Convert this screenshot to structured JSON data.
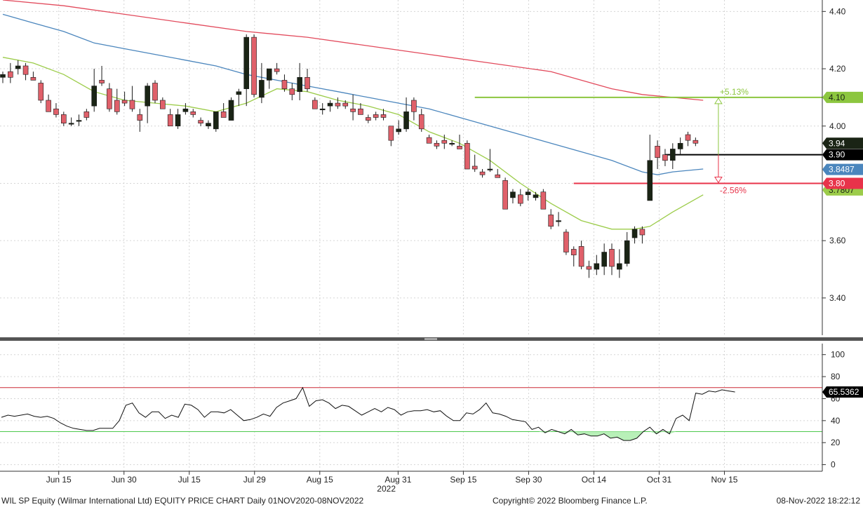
{
  "footer": {
    "left": "WIL SP Equity (Wilmar International Ltd) EQUITY PRICE CHART  Daily 01NOV2020-08NOV2022",
    "center": "Copyright© 2022 Bloomberg Finance L.P.",
    "right": "08-Nov-2022 18:22:12"
  },
  "colors": {
    "up_candle": "#1a2415",
    "down_candle": "#e0606a",
    "ma_green": "#9ccc4a",
    "ma_blue": "#4b86bd",
    "ma_red": "#e24a5c",
    "resistance": "#8cc63f",
    "support": "#e8334a",
    "last_price": "#000000",
    "rsi_line": "#111111",
    "rsi_fill": "#b8f0b8"
  },
  "chart_data": [
    {
      "type": "candlestick",
      "ylim": [
        3.27,
        4.44
      ],
      "yticks": [
        "3.40",
        "3.60",
        "3.80",
        "4.00",
        "4.20",
        "4.40"
      ],
      "xlim": [
        0,
        63
      ],
      "xticks": [
        {
          "x": 4.5,
          "label": "Jun 15"
        },
        {
          "x": 9.5,
          "label": "Jun 30"
        },
        {
          "x": 14.5,
          "label": "Jul 15"
        },
        {
          "x": 19.5,
          "label": "Jul 29"
        },
        {
          "x": 24.5,
          "label": "Aug 15"
        },
        {
          "x": 30.5,
          "label": "Aug 31"
        },
        {
          "x": 35.5,
          "label": "Sep 15"
        },
        {
          "x": 40.5,
          "label": "Sep 30"
        },
        {
          "x": 45.5,
          "label": "Oct 14"
        },
        {
          "x": 50.5,
          "label": "Oct 31"
        },
        {
          "x": 55.5,
          "label": "Nov 15"
        }
      ],
      "year_label": {
        "x": 29.6,
        "label": "2022"
      },
      "candles": [
        [
          4.17,
          4.19,
          4.15,
          4.18
        ],
        [
          4.19,
          4.22,
          4.15,
          4.17
        ],
        [
          4.2,
          4.23,
          4.18,
          4.21
        ],
        [
          4.21,
          4.22,
          4.16,
          4.18
        ],
        [
          4.17,
          4.19,
          4.16,
          4.16
        ],
        [
          4.15,
          4.16,
          4.08,
          4.09
        ],
        [
          4.09,
          4.11,
          4.05,
          4.05
        ],
        [
          4.06,
          4.08,
          4.03,
          4.04
        ],
        [
          4.04,
          4.05,
          4.0,
          4.01
        ],
        [
          4.01,
          4.03,
          4.0,
          4.01
        ],
        [
          4.02,
          4.04,
          4.0,
          4.02
        ],
        [
          4.05,
          4.06,
          4.02,
          4.03
        ],
        [
          4.07,
          4.2,
          4.05,
          4.14
        ],
        [
          4.16,
          4.21,
          4.14,
          4.15
        ],
        [
          4.13,
          4.15,
          4.05,
          4.06
        ],
        [
          4.09,
          4.13,
          4.04,
          4.05
        ],
        [
          4.09,
          4.12,
          4.07,
          4.08
        ],
        [
          4.09,
          4.14,
          4.05,
          4.06
        ],
        [
          4.04,
          4.06,
          3.98,
          4.02
        ],
        [
          4.07,
          4.15,
          4.01,
          4.14
        ],
        [
          4.15,
          4.16,
          4.08,
          4.09
        ],
        [
          4.09,
          4.1,
          4.06,
          4.06
        ],
        [
          4.04,
          4.06,
          4.0,
          4.0
        ],
        [
          4.0,
          4.06,
          3.99,
          4.04
        ],
        [
          4.05,
          4.08,
          4.04,
          4.06
        ],
        [
          4.05,
          4.06,
          4.03,
          4.04
        ],
        [
          4.02,
          4.03,
          4.0,
          4.01
        ],
        [
          4.0,
          4.02,
          3.99,
          4.01
        ],
        [
          3.99,
          4.05,
          3.98,
          4.05
        ],
        [
          4.05,
          4.08,
          4.03,
          4.03
        ],
        [
          4.02,
          4.1,
          4.02,
          4.09
        ],
        [
          4.11,
          4.13,
          4.07,
          4.12
        ],
        [
          4.13,
          4.32,
          4.07,
          4.31
        ],
        [
          4.31,
          4.32,
          4.1,
          4.11
        ],
        [
          4.1,
          4.22,
          4.08,
          4.16
        ],
        [
          4.16,
          4.2,
          4.13,
          4.2
        ],
        [
          4.2,
          4.22,
          4.18,
          4.19
        ],
        [
          4.16,
          4.18,
          4.12,
          4.13
        ],
        [
          4.13,
          4.15,
          4.09,
          4.11
        ],
        [
          4.12,
          4.22,
          4.09,
          4.17
        ],
        [
          4.17,
          4.2,
          4.12,
          4.13
        ],
        [
          4.09,
          4.1,
          4.06,
          4.06
        ],
        [
          4.06,
          4.08,
          4.04,
          4.06
        ],
        [
          4.07,
          4.09,
          4.05,
          4.08
        ],
        [
          4.08,
          4.1,
          4.06,
          4.07
        ],
        [
          4.08,
          4.09,
          4.06,
          4.07
        ],
        [
          4.06,
          4.11,
          4.02,
          4.05
        ],
        [
          4.06,
          4.08,
          4.04,
          4.04
        ],
        [
          4.03,
          4.04,
          4.01,
          4.02
        ],
        [
          4.04,
          4.05,
          4.02,
          4.03
        ],
        [
          4.04,
          4.06,
          4.02,
          4.03
        ],
        [
          4.0,
          4.0,
          3.93,
          3.95
        ],
        [
          3.98,
          4.02,
          3.97,
          3.99
        ],
        [
          3.99,
          4.1,
          3.98,
          4.05
        ],
        [
          4.09,
          4.1,
          4.02,
          4.05
        ],
        [
          4.04,
          4.06,
          3.98,
          3.99
        ],
        [
          3.96,
          3.97,
          3.94,
          3.94
        ],
        [
          3.94,
          3.95,
          3.92,
          3.93
        ],
        [
          3.95,
          3.97,
          3.92,
          3.94
        ],
        [
          3.94,
          3.95,
          3.93,
          3.94
        ],
        [
          3.93,
          3.97,
          3.92,
          3.92
        ],
        [
          3.94,
          3.95,
          3.85,
          3.85
        ],
        [
          3.86,
          3.9,
          3.84,
          3.85
        ],
        [
          3.84,
          3.85,
          3.82,
          3.83
        ],
        [
          3.85,
          3.92,
          3.84,
          3.85
        ],
        [
          3.83,
          3.85,
          3.82,
          3.82
        ],
        [
          3.81,
          3.82,
          3.71,
          3.71
        ],
        [
          3.75,
          3.78,
          3.73,
          3.77
        ],
        [
          3.76,
          3.78,
          3.72,
          3.73
        ],
        [
          3.76,
          3.78,
          3.74,
          3.77
        ],
        [
          3.75,
          3.77,
          3.74,
          3.76
        ],
        [
          3.77,
          3.78,
          3.71,
          3.71
        ],
        [
          3.69,
          3.71,
          3.64,
          3.65
        ],
        [
          3.67,
          3.7,
          3.65,
          3.67
        ],
        [
          3.63,
          3.64,
          3.55,
          3.56
        ],
        [
          3.57,
          3.58,
          3.51,
          3.55
        ],
        [
          3.58,
          3.6,
          3.5,
          3.51
        ],
        [
          3.51,
          3.53,
          3.47,
          3.5
        ],
        [
          3.5,
          3.55,
          3.48,
          3.52
        ],
        [
          3.51,
          3.59,
          3.48,
          3.56
        ],
        [
          3.57,
          3.59,
          3.48,
          3.51
        ],
        [
          3.5,
          3.57,
          3.47,
          3.52
        ],
        [
          3.52,
          3.63,
          3.51,
          3.6
        ],
        [
          3.61,
          3.65,
          3.59,
          3.64
        ],
        [
          3.64,
          3.65,
          3.59,
          3.62
        ],
        [
          3.74,
          3.97,
          3.74,
          3.88
        ],
        [
          3.93,
          3.95,
          3.85,
          3.89
        ],
        [
          3.9,
          3.92,
          3.86,
          3.88
        ],
        [
          3.88,
          3.94,
          3.85,
          3.92
        ],
        [
          3.92,
          3.96,
          3.9,
          3.94
        ],
        [
          3.97,
          3.98,
          3.93,
          3.95
        ],
        [
          3.95,
          3.96,
          3.93,
          3.94
        ]
      ],
      "moving_averages": [
        {
          "color": "#9ccc4a",
          "values": [
            [
              0,
              4.24
            ],
            [
              4,
              4.22
            ],
            [
              8,
              4.18
            ],
            [
              12,
              4.12
            ],
            [
              16,
              4.09
            ],
            [
              20,
              4.08
            ],
            [
              24,
              4.07
            ],
            [
              28,
              4.05
            ],
            [
              32,
              4.08
            ],
            [
              36,
              4.13
            ],
            [
              40,
              4.12
            ],
            [
              44,
              4.09
            ],
            [
              48,
              4.07
            ],
            [
              52,
              4.04
            ],
            [
              56,
              3.98
            ],
            [
              60,
              3.94
            ],
            [
              64,
              3.88
            ],
            [
              68,
              3.8
            ],
            [
              72,
              3.73
            ],
            [
              76,
              3.67
            ],
            [
              80,
              3.64
            ],
            [
              83,
              3.64
            ],
            [
              85,
              3.65
            ],
            [
              88,
              3.7
            ],
            [
              92,
              3.76
            ]
          ]
        },
        {
          "color": "#4b86bd",
          "values": [
            [
              0,
              4.39
            ],
            [
              4,
              4.36
            ],
            [
              8,
              4.33
            ],
            [
              12,
              4.29
            ],
            [
              16,
              4.27
            ],
            [
              20,
              4.25
            ],
            [
              24,
              4.23
            ],
            [
              28,
              4.21
            ],
            [
              32,
              4.18
            ],
            [
              36,
              4.16
            ],
            [
              40,
              4.14
            ],
            [
              44,
              4.12
            ],
            [
              48,
              4.1
            ],
            [
              52,
              4.08
            ],
            [
              56,
              4.06
            ],
            [
              60,
              4.03
            ],
            [
              64,
              4.0
            ],
            [
              68,
              3.97
            ],
            [
              72,
              3.94
            ],
            [
              76,
              3.91
            ],
            [
              80,
              3.88
            ],
            [
              84,
              3.84
            ],
            [
              86,
              3.83
            ],
            [
              88,
              3.84
            ],
            [
              92,
              3.85
            ]
          ]
        },
        {
          "color": "#e24a5c",
          "values": [
            [
              0,
              4.44
            ],
            [
              8,
              4.42
            ],
            [
              16,
              4.39
            ],
            [
              24,
              4.36
            ],
            [
              32,
              4.33
            ],
            [
              40,
              4.31
            ],
            [
              48,
              4.28
            ],
            [
              56,
              4.25
            ],
            [
              64,
              4.22
            ],
            [
              72,
              4.19
            ],
            [
              76,
              4.16
            ],
            [
              80,
              4.13
            ],
            [
              84,
              4.11
            ],
            [
              88,
              4.1
            ],
            [
              92,
              4.09
            ]
          ]
        }
      ],
      "labels": {
        "resistance_value": "4.10",
        "resistance_pct": "+5.13%",
        "support_value": "3.80",
        "support_pct": "-2.56%",
        "last_close": "3.94",
        "last_price": "3.90",
        "ma_blue": "3.8487",
        "ma_green": "3.7807"
      }
    },
    {
      "type": "line",
      "name": "RSI",
      "ylim": [
        -6,
        110
      ],
      "yticks": [
        "0",
        "20",
        "40",
        "60",
        "80",
        "100"
      ],
      "upper_band": 70,
      "lower_band": 30,
      "last_label": "65.5362",
      "values": [
        43,
        45,
        44,
        45,
        46,
        44,
        43,
        44,
        42,
        38,
        35,
        33,
        32,
        31,
        31,
        33,
        33,
        33,
        40,
        54,
        56,
        47,
        43,
        48,
        48,
        42,
        45,
        43,
        55,
        54,
        50,
        43,
        48,
        48,
        47,
        50,
        45,
        40,
        41,
        43,
        46,
        44,
        52,
        56,
        58,
        60,
        70,
        53,
        58,
        59,
        56,
        51,
        54,
        53,
        49,
        45,
        48,
        51,
        48,
        52,
        50,
        45,
        48,
        49,
        49,
        50,
        48,
        49,
        44,
        40,
        40,
        47,
        46,
        50,
        56,
        47,
        46,
        44,
        41,
        40,
        39,
        32,
        34,
        29,
        32,
        30,
        28,
        32,
        27,
        28,
        26,
        26,
        28,
        24,
        25,
        22,
        22,
        24,
        30,
        34,
        28,
        32,
        28,
        42,
        45,
        40,
        65,
        64,
        67,
        66,
        68,
        67,
        66
      ]
    }
  ]
}
